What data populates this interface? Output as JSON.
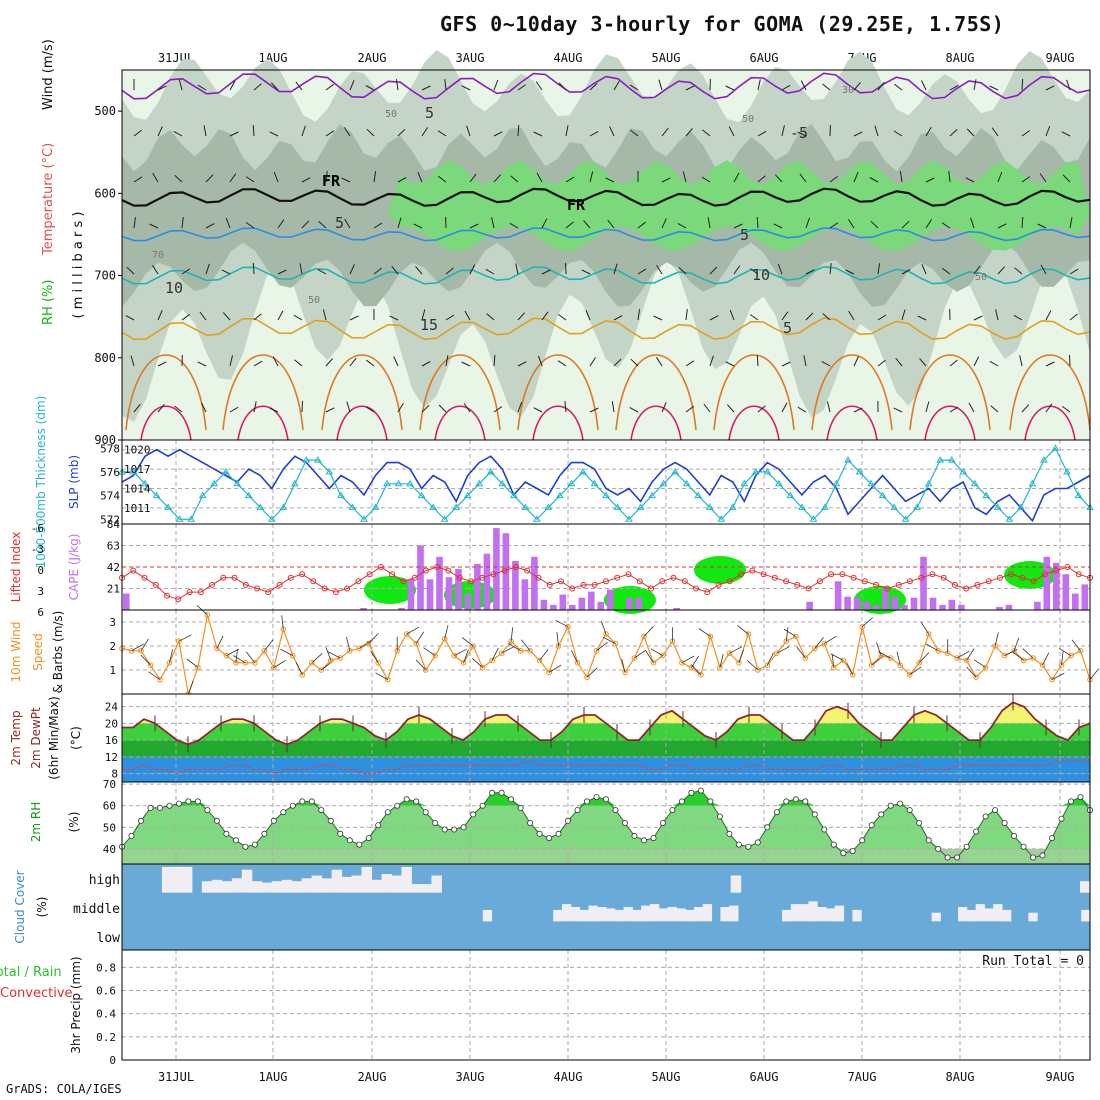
{
  "title": "GFS 0~10day 3-hourly for GOMA (29.25E, 1.75S)",
  "credit": "GrADS: COLA/IGES",
  "colors": {
    "rh_light": "#e9f5e6",
    "rh_mid": "#c4d4c6",
    "rh_dark": "#a6b8a8",
    "rh_green": "#7bd87b",
    "rh_bright": "#10e810",
    "slp": "#1f3fd0",
    "thickness": "#22b8c8",
    "cape": "#c070f0",
    "lifted": "#e03030",
    "wind": "#f09020",
    "temp_line": "#8b2a2a",
    "dewpt": "#ff3030",
    "rh2m": "#2ad02a",
    "cloud": "#6aaad8",
    "cloud_fill": "#f0eef2"
  },
  "chart_data": {
    "type": "meteogram",
    "dates": [
      "31JUL",
      "1AUG",
      "2AUG",
      "3AUG",
      "4AUG",
      "5AUG",
      "6AUG",
      "7AUG",
      "8AUG",
      "9AUG"
    ],
    "panels": [
      {
        "id": "upper_air",
        "type": "heatmap",
        "ylabel_parts": [
          "RH (%)",
          "Temperature (°C)",
          "Wind (m/s)"
        ],
        "yunits": "( m i l l i b a r s )",
        "yticks": [
          500,
          600,
          700,
          800,
          900
        ],
        "ylim": [
          450,
          900
        ],
        "contour_labels": [
          "5",
          "-5",
          "FR",
          "FR",
          "5",
          "5",
          "10",
          "10",
          "15",
          "5",
          "30",
          "50",
          "50",
          "70",
          "50",
          "50"
        ],
        "freezing_level_mb": 605,
        "isotherm_5C_mb": 650,
        "isotherm_10C_mb": 700,
        "isotherm_15C_mb": 765
      },
      {
        "id": "slp_thickness",
        "type": "line",
        "ylabel_left": "1000-500mb Thickness (dm)",
        "ylabel_right": "SLP (mb)",
        "left_ticks": [
          572,
          574,
          576,
          578
        ],
        "right_ticks": [
          1011,
          1014,
          1017,
          1020
        ],
        "slp_ylim": [
          1008.5,
          1021.5
        ],
        "thickness_ylim": [
          571.6,
          578.7
        ],
        "slp": [
          1015,
          1016,
          1019,
          1020,
          1019,
          1020,
          1019,
          1018,
          1017,
          1016,
          1015,
          1017,
          1016,
          1014,
          1017,
          1019,
          1018,
          1016,
          1014,
          1016,
          1015,
          1013,
          1016,
          1018,
          1018,
          1017,
          1014,
          1016,
          1015,
          1012,
          1016,
          1018,
          1019,
          1017,
          1013,
          1015,
          1014,
          1013,
          1016,
          1018,
          1018,
          1017,
          1014,
          1013,
          1014,
          1012,
          1015,
          1017,
          1018,
          1017,
          1015,
          1013,
          1016,
          1015,
          1012,
          1016,
          1018,
          1017,
          1015,
          1013,
          1015,
          1016,
          1014,
          1010,
          1012,
          1014,
          1016,
          1014,
          1012,
          1013,
          1014,
          1012,
          1014,
          1015,
          1011,
          1010,
          1012,
          1013,
          1011,
          1009,
          1013,
          1014,
          1014,
          1015,
          1016
        ],
        "thickness": [
          576,
          576,
          575,
          574,
          573,
          572,
          572,
          574,
          575,
          576,
          575,
          574,
          573,
          572,
          573,
          575,
          577,
          577,
          576,
          574,
          573,
          572,
          573,
          575,
          575,
          575,
          574,
          573,
          572,
          573,
          574,
          575,
          576,
          575,
          574,
          573,
          572,
          573,
          574,
          575,
          576,
          575,
          574,
          573,
          572,
          573,
          574,
          575,
          576,
          575,
          574,
          573,
          572,
          573,
          575,
          576,
          576,
          575,
          574,
          573,
          572,
          573,
          575,
          577,
          576,
          575,
          574,
          573,
          572,
          573,
          575,
          577,
          577,
          576,
          575,
          574,
          573,
          572,
          573,
          575,
          577,
          578,
          576,
          574,
          573
        ]
      },
      {
        "id": "cape_li",
        "type": "bar",
        "ylabel_left": "Lifted Index",
        "ylabel_right": "CAPE (J/kg)",
        "li_ticks": [
          "-6",
          "-3",
          "0",
          "3",
          "6"
        ],
        "cape_ticks": [
          21,
          42,
          63,
          84
        ],
        "cape_ylim": [
          0,
          84
        ],
        "li_ylim": [
          6,
          -6
        ],
        "cape": [
          16,
          0,
          0,
          0,
          0,
          0,
          0,
          0,
          0,
          0,
          0,
          0,
          0,
          0,
          0,
          0,
          0,
          0,
          0,
          0,
          0,
          0,
          0,
          0,
          0,
          2,
          0,
          0,
          0,
          2,
          30,
          63,
          30,
          52,
          32,
          40,
          16,
          45,
          55,
          80,
          75,
          48,
          30,
          52,
          10,
          5,
          15,
          5,
          12,
          18,
          8,
          20,
          0,
          12,
          12,
          0,
          0,
          0,
          2,
          0,
          0,
          0,
          0,
          0,
          0,
          0,
          0,
          0,
          0,
          0,
          0,
          0,
          8,
          0,
          0,
          28,
          13,
          12,
          8,
          5,
          20,
          13,
          5,
          12,
          52,
          12,
          5,
          10,
          5,
          0,
          0,
          0,
          3,
          5,
          0,
          0,
          8,
          52,
          46,
          35,
          16,
          25
        ],
        "lifted_index": [
          1.5,
          0.5,
          1.5,
          2.5,
          4,
          4.5,
          3.5,
          3.5,
          2.5,
          1.5,
          1.5,
          2.5,
          3,
          3.5,
          2.5,
          1.5,
          1,
          2,
          3,
          3.5,
          3,
          2,
          1,
          0,
          1,
          2,
          1.5,
          0.5,
          0,
          0.5,
          1.5,
          2,
          1.5,
          1,
          0.5,
          0,
          0.5,
          1.5,
          2.5,
          2,
          3,
          2.5,
          2.5,
          2,
          1.5,
          1,
          2,
          3,
          2,
          1.5,
          2,
          3,
          3.5,
          2.5,
          2,
          1,
          0.5,
          1,
          1.5,
          2,
          2.5,
          3,
          2,
          1,
          1,
          1.5,
          2,
          2.5,
          3,
          2.5,
          2,
          1.5,
          1,
          1.5,
          2.5,
          3,
          2.5,
          2,
          1.5,
          1,
          1.5,
          2,
          1,
          0.5,
          0,
          1,
          1.5
        ]
      },
      {
        "id": "wind10m",
        "type": "line",
        "ylabel": "10m Wind Speed & Barbs (m/s)",
        "yticks": [
          1,
          2,
          3
        ],
        "ylim": [
          0,
          3.5
        ],
        "speed": [
          1.9,
          1.8,
          1.8,
          1.2,
          0.6,
          1.3,
          2.2,
          0.0,
          1.1,
          3.3,
          1.9,
          1.6,
          1.3,
          1.3,
          1.3,
          1.8,
          1.1,
          2.7,
          1.6,
          0.8,
          1.3,
          1.0,
          1.4,
          1.5,
          1.8,
          1.9,
          2.1,
          1.3,
          0.6,
          1.8,
          2.5,
          2.1,
          1.0,
          1.6,
          2.3,
          1.6,
          1.3,
          2.0,
          1.1,
          1.4,
          1.7,
          2.2,
          1.8,
          1.8,
          1.4,
          0.9,
          2.0,
          2.8,
          1.3,
          0.7,
          1.8,
          2.5,
          2.1,
          0.9,
          1.5,
          2.4,
          1.3,
          1.6,
          2.2,
          1.3,
          1.1,
          0.8,
          2.4,
          1.1,
          1.7,
          1.3,
          2.5,
          1.0,
          1.2,
          1.7,
          2.2,
          2.4,
          1.5,
          1.9,
          2.1,
          1.1,
          1.4,
          0.8,
          2.8,
          1.2,
          1.6,
          1.5,
          1.2,
          0.8,
          1.3,
          2.5,
          1.8,
          1.7,
          1.5,
          1.4,
          0.7,
          1.1,
          2.0,
          1.6,
          1.8,
          1.4,
          1.5,
          1.2,
          0.6,
          1.2,
          1.6,
          1.8,
          0.6
        ]
      },
      {
        "id": "temp2m",
        "type": "area",
        "ylabel": "2m Temp 2m DewPt (6hr Min/Max) (°C)",
        "yticks": [
          8,
          12,
          16,
          20,
          24
        ],
        "ylim": [
          6,
          27
        ],
        "temp": [
          19,
          19,
          21,
          20,
          18,
          16,
          15,
          16,
          18,
          20,
          21,
          21,
          20,
          18,
          16,
          15,
          16,
          18,
          20,
          21,
          21,
          20,
          19,
          17,
          16,
          18,
          21,
          22,
          21,
          19,
          17,
          16,
          18,
          21,
          22,
          22,
          20,
          18,
          16,
          16,
          18,
          21,
          22,
          22,
          20,
          18,
          16,
          16,
          19,
          22,
          23,
          21,
          19,
          17,
          16,
          18,
          21,
          22,
          22,
          20,
          18,
          16,
          16,
          19,
          23,
          24,
          23,
          20,
          18,
          16,
          16,
          19,
          22,
          23,
          22,
          20,
          18,
          16,
          16,
          19,
          23,
          25,
          24,
          21,
          19,
          17,
          16,
          19,
          20
        ],
        "dewpt": [
          9,
          9,
          10,
          9,
          9,
          8,
          9,
          9,
          9,
          9,
          10,
          10,
          9,
          9,
          8,
          9,
          9,
          9,
          10,
          10,
          9,
          9,
          8,
          8,
          9,
          9,
          10,
          10,
          10,
          10,
          10,
          10,
          10,
          10,
          10,
          10,
          10,
          11,
          10,
          10,
          10,
          10,
          10,
          10,
          10,
          10,
          10,
          10,
          9,
          9,
          10,
          10,
          9,
          9,
          9,
          9,
          9,
          10,
          10,
          9,
          9,
          9,
          9,
          9,
          10,
          10,
          9,
          9,
          9,
          9,
          9,
          10,
          10,
          9,
          9,
          9,
          10,
          10,
          10,
          10,
          10,
          10,
          10,
          10,
          10,
          11,
          11,
          11,
          11
        ]
      },
      {
        "id": "rh2m",
        "type": "area",
        "ylabel": "2m RH (%)",
        "yticks": [
          40,
          50,
          60,
          70
        ],
        "ylim": [
          33,
          71
        ],
        "rh": [
          41,
          46,
          53,
          59,
          59,
          60,
          61,
          62,
          62,
          58,
          53,
          47,
          44,
          41,
          42,
          47,
          53,
          57,
          60,
          62,
          62,
          58,
          53,
          47,
          44,
          42,
          45,
          51,
          57,
          60,
          63,
          62,
          57,
          52,
          49,
          49,
          50,
          56,
          60,
          66,
          66,
          63,
          59,
          52,
          47,
          45,
          47,
          53,
          58,
          62,
          64,
          63,
          58,
          52,
          46,
          44,
          45,
          52,
          58,
          62,
          66,
          67,
          62,
          55,
          47,
          42,
          41,
          43,
          50,
          57,
          62,
          63,
          62,
          56,
          49,
          42,
          38,
          39,
          44,
          51,
          56,
          60,
          61,
          58,
          52,
          44,
          40,
          36,
          36,
          41,
          48,
          55,
          58,
          52,
          46,
          41,
          36,
          37,
          45,
          54,
          62,
          64,
          58
        ]
      },
      {
        "id": "cloud",
        "type": "bar",
        "ylabel": "Cloud Cover (%)",
        "ylabels": [
          "high",
          "middle",
          "low"
        ],
        "high": [
          0,
          0,
          0,
          0,
          90,
          90,
          90,
          0,
          40,
          45,
          40,
          50,
          80,
          40,
          35,
          40,
          45,
          40,
          50,
          60,
          50,
          80,
          55,
          60,
          90,
          45,
          65,
          60,
          90,
          30,
          30,
          60,
          0,
          0,
          0,
          0,
          0,
          0,
          0,
          0,
          0,
          0,
          0,
          0,
          0,
          0,
          0,
          0,
          0,
          0,
          0,
          0,
          0,
          0,
          0,
          0,
          0,
          0,
          0,
          0,
          0,
          60,
          0,
          0,
          0,
          0,
          0,
          0,
          0,
          0,
          0,
          0,
          0,
          0,
          0,
          0,
          0,
          0,
          0,
          0,
          0,
          0,
          0,
          0,
          0,
          0,
          0,
          0,
          0,
          0,
          0,
          0,
          0,
          0,
          0,
          0,
          40
        ],
        "middle": [
          0,
          0,
          0,
          0,
          0,
          0,
          0,
          0,
          0,
          0,
          0,
          0,
          0,
          0,
          0,
          0,
          0,
          0,
          0,
          0,
          0,
          0,
          0,
          0,
          0,
          0,
          0,
          0,
          0,
          0,
          0,
          0,
          0,
          0,
          0,
          0,
          0,
          0,
          0,
          0,
          0,
          40,
          0,
          0,
          0,
          0,
          0,
          0,
          0,
          40,
          60,
          50,
          40,
          55,
          50,
          45,
          40,
          50,
          40,
          55,
          60,
          45,
          50,
          45,
          40,
          50,
          60,
          0,
          50,
          55,
          0,
          0,
          0,
          0,
          0,
          40,
          60,
          60,
          70,
          50,
          45,
          55,
          0,
          40,
          0,
          0,
          0,
          0,
          0,
          0,
          0,
          0,
          30,
          0,
          0,
          50,
          40,
          60,
          45,
          60,
          40,
          0,
          0,
          30,
          0,
          0,
          0,
          0,
          0,
          40
        ],
        "low": [
          0,
          0,
          0,
          0,
          0,
          0,
          0,
          0,
          0,
          0,
          0,
          0,
          0,
          0,
          0,
          0,
          0,
          0,
          0,
          0,
          0,
          0,
          0,
          0,
          0,
          0,
          0,
          0,
          0,
          0,
          0,
          0,
          0,
          0,
          0,
          0,
          0,
          0,
          0,
          0,
          0,
          0,
          0,
          0,
          0,
          0,
          0,
          0,
          0,
          0,
          0,
          0,
          0,
          0,
          0,
          0,
          0,
          0,
          0,
          0,
          0,
          0,
          0,
          0,
          0,
          0,
          0,
          0,
          0,
          0,
          0,
          0,
          0,
          0,
          0,
          0,
          0,
          0,
          0,
          0,
          0,
          0,
          0,
          0,
          0,
          0,
          0,
          0,
          0,
          0,
          0,
          0,
          0,
          0,
          0,
          0,
          0,
          0,
          0
        ]
      },
      {
        "id": "precip",
        "type": "bar",
        "ylabel_left": "Total / Rain",
        "ylabel_right": "Convective",
        "ylabel": "3hr Precip (mm)",
        "yticks": [
          "0",
          "0.2",
          "0.4",
          "0.6",
          "0.8"
        ],
        "ylim": [
          0,
          0.95
        ],
        "run_total": "Run Total = 0",
        "values": []
      }
    ]
  }
}
